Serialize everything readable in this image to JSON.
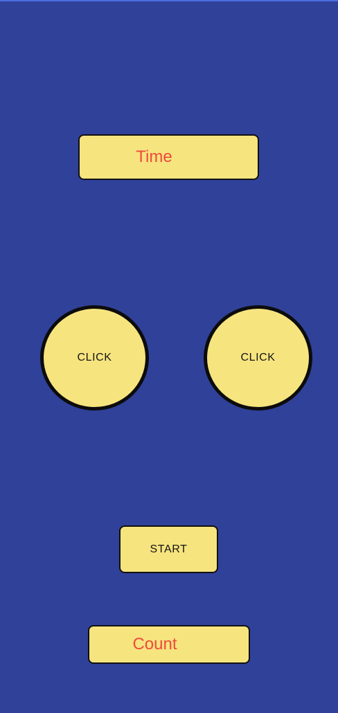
{
  "colors": {
    "background": "#30419a",
    "button_fill": "#f6e47f",
    "display_text": "#ef4b3c",
    "button_text": "#141414",
    "border": "#111111"
  },
  "time_display": {
    "text": "Time"
  },
  "click_buttons": [
    {
      "label": "CLICK"
    },
    {
      "label": "CLICK"
    }
  ],
  "start_button": {
    "label": "START"
  },
  "count_display": {
    "text": "Count"
  }
}
